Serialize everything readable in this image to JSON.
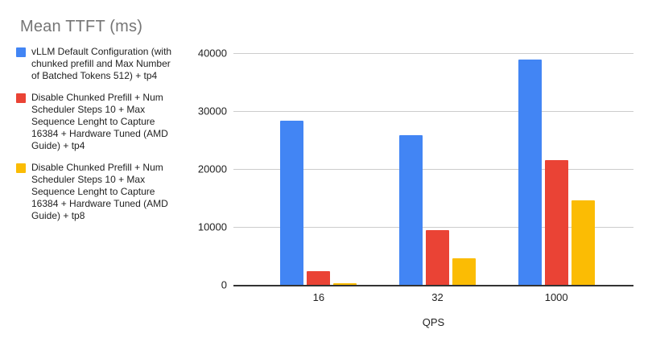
{
  "chart_data": {
    "type": "bar",
    "title": "Mean TTFT (ms)",
    "categories": [
      "16",
      "32",
      "1000"
    ],
    "series": [
      {
        "name": "vLLM Default Configuration (with chunked prefill and Max Number of Batched Tokens 512) + tp4",
        "color": "#4285F4",
        "values": [
          28400,
          25800,
          38900
        ]
      },
      {
        "name": "Disable Chunked Prefill + Num Scheduler Steps 10 + Max Sequence Lenght to Capture 16384 + Hardware Tuned (AMD Guide) + tp4",
        "color": "#EA4335",
        "values": [
          2300,
          9400,
          21500
        ]
      },
      {
        "name": "Disable Chunked Prefill + Num Scheduler Steps 10 + Max Sequence Lenght to Capture 16384 + Hardware Tuned (AMD Guide) + tp8",
        "color": "#FBBC04",
        "values": [
          250,
          4600,
          14600
        ]
      }
    ],
    "xlabel": "QPS",
    "ylabel": "",
    "ylim": [
      0,
      40000
    ],
    "yticks": [
      0,
      10000,
      20000,
      30000,
      40000
    ],
    "grid": true,
    "legend_position": "left"
  },
  "colors": {
    "title_text": "#757575",
    "axis_text": "#222222",
    "axis_line": "#333333",
    "gridline": "#cccccc",
    "background": "#ffffff"
  }
}
